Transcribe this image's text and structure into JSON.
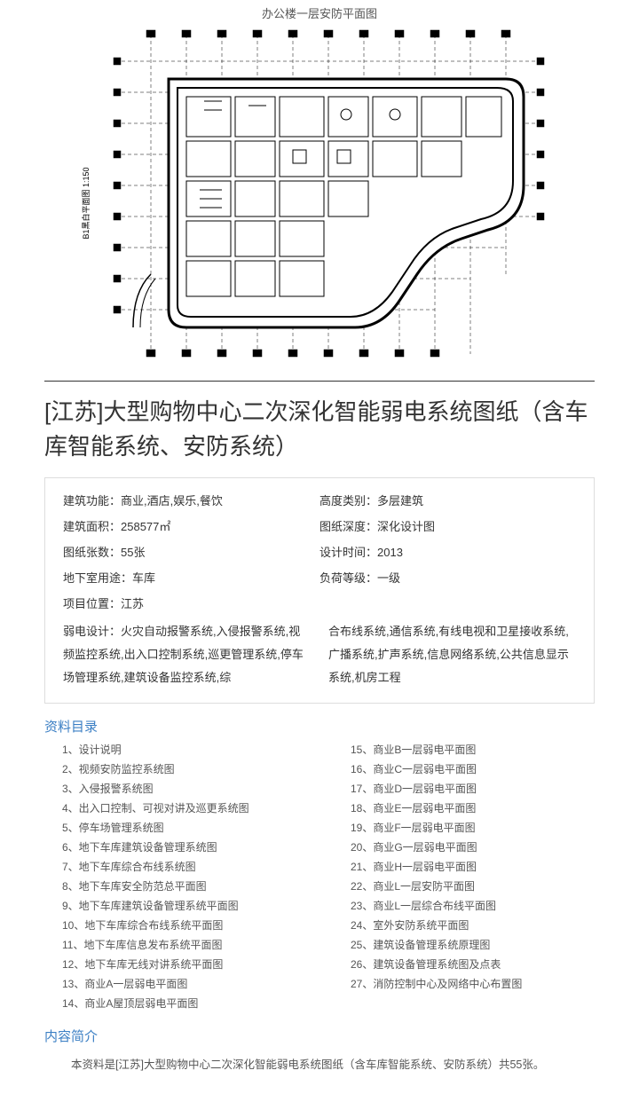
{
  "floor_plan": {
    "label": "办公楼一层安防平面图",
    "side_label": "B1黑白平面图 1:150"
  },
  "title": "[江苏]大型购物中心二次深化智能弱电系统图纸（含车库智能系统、安防系统）",
  "metadata": {
    "rows": [
      {
        "left_label": "建筑功能：",
        "left_value": "商业,酒店,娱乐,餐饮",
        "right_label": "高度类别：",
        "right_value": "多层建筑"
      },
      {
        "left_label": "建筑面积：",
        "left_value": "258577㎡",
        "right_label": "图纸深度：",
        "right_value": "深化设计图"
      },
      {
        "left_label": "图纸张数：",
        "left_value": "55张",
        "right_label": "设计时间：",
        "right_value": "2013"
      },
      {
        "left_label": "地下室用途：",
        "left_value": "车库",
        "right_label": "负荷等级：",
        "right_value": "一级"
      }
    ],
    "location_label": "项目位置：",
    "location_value": "江苏",
    "design_label": "弱电设计：",
    "design_left": "火灾自动报警系统,入侵报警系统,视频监控系统,出入口控制系统,巡更管理系统,停车场管理系统,建筑设备监控系统,综",
    "design_right": "合布线系统,通信系统,有线电视和卫星接收系统,广播系统,扩声系统,信息网络系统,公共信息显示系统,机房工程"
  },
  "toc": {
    "heading": "资料目录",
    "col1": [
      "1、设计说明",
      "2、视频安防监控系统图",
      "3、入侵报警系统图",
      "4、出入口控制、可视对讲及巡更系统图",
      "5、停车场管理系统图",
      "6、地下车库建筑设备管理系统图",
      "7、地下车库综合布线系统图",
      "8、地下车库安全防范总平面图",
      "9、地下车库建筑设备管理系统平面图",
      "10、地下车库综合布线系统平面图",
      "11、地下车库信息发布系统平面图",
      "12、地下车库无线对讲系统平面图",
      "13、商业A一层弱电平面图",
      "14、商业A屋顶层弱电平面图"
    ],
    "col2": [
      "15、商业B一层弱电平面图",
      "16、商业C一层弱电平面图",
      "17、商业D一层弱电平面图",
      "18、商业E一层弱电平面图",
      "19、商业F一层弱电平面图",
      "20、商业G一层弱电平面图",
      "21、商业H一层弱电平面图",
      "22、商业L一层安防平面图",
      "23、商业L一层综合布线平面图",
      "24、室外安防系统平面图",
      "25、建筑设备管理系统原理图",
      "26、建筑设备管理系统图及点表",
      "27、消防控制中心及网络中心布置图"
    ]
  },
  "summary": {
    "heading": "内容简介",
    "text": "本资料是[江苏]大型购物中心二次深化智能弱电系统图纸（含车库智能系统、安防系统）共55张。"
  },
  "colors": {
    "heading_color": "#3b7fc4",
    "text_color": "#333333",
    "muted_text": "#555555",
    "border_color": "#dddddd"
  }
}
